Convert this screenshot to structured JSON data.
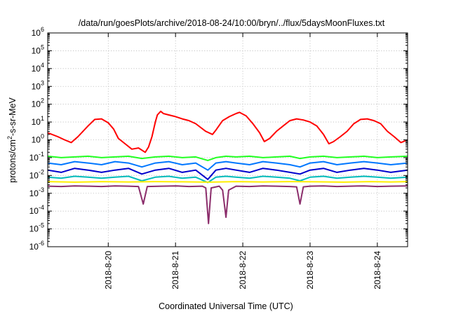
{
  "chart_data": {
    "type": "line",
    "title": "/data/run/goesPlots/archive/2018-08-24/10:00/bryn/../flux/5daysMoonFluxes.txt",
    "xlabel": "Coordinated Universal Time (UTC)",
    "ylabel": {
      "main": "protons/cm",
      "sup": "2",
      "rest": "-s-sr-MeV"
    },
    "y_scale": "log",
    "ylim_exponent": [
      -6,
      6
    ],
    "yticks": [
      {
        "base": "10",
        "exp": "-6"
      },
      {
        "base": "10",
        "exp": "-5"
      },
      {
        "base": "10",
        "exp": "-4"
      },
      {
        "base": "10",
        "exp": "-3"
      },
      {
        "base": "10",
        "exp": "-2"
      },
      {
        "base": "10",
        "exp": "-1"
      },
      {
        "base": "10",
        "exp": "0"
      },
      {
        "base": "10",
        "exp": "1"
      },
      {
        "base": "10",
        "exp": "2"
      },
      {
        "base": "10",
        "exp": "3"
      },
      {
        "base": "10",
        "exp": "4"
      },
      {
        "base": "10",
        "exp": "5"
      },
      {
        "base": "10",
        "exp": "6"
      }
    ],
    "xlim_days": [
      19.1,
      24.45
    ],
    "xticks": [
      {
        "label": "2018-8-20",
        "day": 20
      },
      {
        "label": "2018-8-21",
        "day": 21
      },
      {
        "label": "2018-8-22",
        "day": 22
      },
      {
        "label": "2018-8-23",
        "day": 23
      },
      {
        "label": "2018-8-24",
        "day": 24
      }
    ],
    "grid": true,
    "series": [
      {
        "color": "#ff0000",
        "points": [
          [
            19.1,
            2.5
          ],
          [
            19.25,
            1.5
          ],
          [
            19.35,
            1.0
          ],
          [
            19.45,
            0.7
          ],
          [
            19.55,
            1.5
          ],
          [
            19.7,
            6
          ],
          [
            19.8,
            14
          ],
          [
            19.9,
            15
          ],
          [
            20.0,
            9
          ],
          [
            20.08,
            4
          ],
          [
            20.15,
            1.2
          ],
          [
            20.25,
            0.6
          ],
          [
            20.35,
            0.3
          ],
          [
            20.45,
            0.35
          ],
          [
            20.55,
            0.2
          ],
          [
            20.6,
            0.4
          ],
          [
            20.65,
            1.5
          ],
          [
            20.7,
            10
          ],
          [
            20.73,
            25
          ],
          [
            20.78,
            40
          ],
          [
            20.82,
            30
          ],
          [
            20.9,
            25
          ],
          [
            21.0,
            20
          ],
          [
            21.1,
            15
          ],
          [
            21.2,
            12
          ],
          [
            21.3,
            8
          ],
          [
            21.45,
            3
          ],
          [
            21.55,
            2.0
          ],
          [
            21.6,
            3.5
          ],
          [
            21.7,
            12
          ],
          [
            21.8,
            20
          ],
          [
            21.9,
            30
          ],
          [
            21.95,
            35
          ],
          [
            22.05,
            22
          ],
          [
            22.15,
            8
          ],
          [
            22.25,
            2.5
          ],
          [
            22.32,
            0.8
          ],
          [
            22.4,
            1.2
          ],
          [
            22.5,
            3
          ],
          [
            22.6,
            6
          ],
          [
            22.7,
            12
          ],
          [
            22.8,
            15
          ],
          [
            22.9,
            13
          ],
          [
            23.0,
            10
          ],
          [
            23.1,
            6
          ],
          [
            23.2,
            2
          ],
          [
            23.28,
            0.6
          ],
          [
            23.35,
            0.8
          ],
          [
            23.45,
            1.5
          ],
          [
            23.55,
            3
          ],
          [
            23.65,
            8
          ],
          [
            23.75,
            14
          ],
          [
            23.85,
            15
          ],
          [
            23.95,
            12
          ],
          [
            24.05,
            8
          ],
          [
            24.15,
            3
          ],
          [
            24.25,
            1.5
          ],
          [
            24.35,
            0.7
          ],
          [
            24.45,
            1.0
          ]
        ]
      },
      {
        "color": "#22ff22",
        "points": [
          [
            19.1,
            0.12
          ],
          [
            19.3,
            0.1
          ],
          [
            19.5,
            0.11
          ],
          [
            19.7,
            0.12
          ],
          [
            19.9,
            0.1
          ],
          [
            20.1,
            0.11
          ],
          [
            20.3,
            0.12
          ],
          [
            20.5,
            0.09
          ],
          [
            20.7,
            0.11
          ],
          [
            20.9,
            0.12
          ],
          [
            21.1,
            0.1
          ],
          [
            21.3,
            0.11
          ],
          [
            21.48,
            0.07
          ],
          [
            21.6,
            0.1
          ],
          [
            21.75,
            0.12
          ],
          [
            21.9,
            0.11
          ],
          [
            22.1,
            0.12
          ],
          [
            22.3,
            0.1
          ],
          [
            22.5,
            0.11
          ],
          [
            22.7,
            0.12
          ],
          [
            22.85,
            0.09
          ],
          [
            23.0,
            0.11
          ],
          [
            23.2,
            0.12
          ],
          [
            23.4,
            0.1
          ],
          [
            23.6,
            0.11
          ],
          [
            23.8,
            0.12
          ],
          [
            24.0,
            0.1
          ],
          [
            24.2,
            0.11
          ],
          [
            24.45,
            0.12
          ]
        ]
      },
      {
        "color": "#0077ff",
        "points": [
          [
            19.1,
            0.05
          ],
          [
            19.3,
            0.04
          ],
          [
            19.5,
            0.06
          ],
          [
            19.7,
            0.05
          ],
          [
            19.9,
            0.04
          ],
          [
            20.1,
            0.06
          ],
          [
            20.3,
            0.05
          ],
          [
            20.5,
            0.03
          ],
          [
            20.7,
            0.05
          ],
          [
            20.9,
            0.06
          ],
          [
            21.1,
            0.04
          ],
          [
            21.3,
            0.05
          ],
          [
            21.48,
            0.02
          ],
          [
            21.6,
            0.05
          ],
          [
            21.75,
            0.06
          ],
          [
            21.9,
            0.05
          ],
          [
            22.1,
            0.04
          ],
          [
            22.3,
            0.06
          ],
          [
            22.5,
            0.05
          ],
          [
            22.7,
            0.04
          ],
          [
            22.85,
            0.03
          ],
          [
            23.0,
            0.05
          ],
          [
            23.2,
            0.06
          ],
          [
            23.4,
            0.04
          ],
          [
            23.6,
            0.05
          ],
          [
            23.8,
            0.06
          ],
          [
            24.0,
            0.05
          ],
          [
            24.2,
            0.04
          ],
          [
            24.45,
            0.05
          ]
        ]
      },
      {
        "color": "#0000cc",
        "points": [
          [
            19.1,
            0.02
          ],
          [
            19.3,
            0.015
          ],
          [
            19.5,
            0.025
          ],
          [
            19.7,
            0.02
          ],
          [
            19.9,
            0.015
          ],
          [
            20.1,
            0.02
          ],
          [
            20.3,
            0.025
          ],
          [
            20.5,
            0.012
          ],
          [
            20.7,
            0.02
          ],
          [
            20.9,
            0.025
          ],
          [
            21.1,
            0.015
          ],
          [
            21.3,
            0.02
          ],
          [
            21.48,
            0.006
          ],
          [
            21.6,
            0.02
          ],
          [
            21.75,
            0.025
          ],
          [
            21.9,
            0.02
          ],
          [
            22.1,
            0.015
          ],
          [
            22.3,
            0.025
          ],
          [
            22.5,
            0.02
          ],
          [
            22.7,
            0.015
          ],
          [
            22.85,
            0.012
          ],
          [
            23.0,
            0.02
          ],
          [
            23.2,
            0.025
          ],
          [
            23.4,
            0.015
          ],
          [
            23.6,
            0.02
          ],
          [
            23.8,
            0.025
          ],
          [
            24.0,
            0.02
          ],
          [
            24.2,
            0.015
          ],
          [
            24.45,
            0.02
          ]
        ]
      },
      {
        "color": "#00bcbc",
        "points": [
          [
            19.1,
            0.008
          ],
          [
            19.3,
            0.007
          ],
          [
            19.5,
            0.009
          ],
          [
            19.7,
            0.008
          ],
          [
            19.9,
            0.007
          ],
          [
            20.1,
            0.008
          ],
          [
            20.3,
            0.009
          ],
          [
            20.5,
            0.005
          ],
          [
            20.7,
            0.008
          ],
          [
            20.9,
            0.009
          ],
          [
            21.1,
            0.007
          ],
          [
            21.3,
            0.008
          ],
          [
            21.48,
            0.004
          ],
          [
            21.6,
            0.008
          ],
          [
            21.75,
            0.009
          ],
          [
            21.9,
            0.008
          ],
          [
            22.1,
            0.007
          ],
          [
            22.3,
            0.009
          ],
          [
            22.5,
            0.008
          ],
          [
            22.7,
            0.007
          ],
          [
            22.85,
            0.005
          ],
          [
            23.0,
            0.008
          ],
          [
            23.2,
            0.009
          ],
          [
            23.4,
            0.007
          ],
          [
            23.6,
            0.008
          ],
          [
            23.8,
            0.009
          ],
          [
            24.0,
            0.008
          ],
          [
            24.2,
            0.007
          ],
          [
            24.45,
            0.008
          ]
        ]
      },
      {
        "color": "#ffee00",
        "points": [
          [
            19.1,
            0.0045
          ],
          [
            19.5,
            0.0042
          ],
          [
            19.9,
            0.0045
          ],
          [
            20.3,
            0.0043
          ],
          [
            20.7,
            0.0045
          ],
          [
            21.1,
            0.0044
          ],
          [
            21.5,
            0.0042
          ],
          [
            21.9,
            0.0045
          ],
          [
            22.3,
            0.0043
          ],
          [
            22.7,
            0.0045
          ],
          [
            23.1,
            0.0044
          ],
          [
            23.5,
            0.0042
          ],
          [
            23.9,
            0.0045
          ],
          [
            24.2,
            0.0043
          ],
          [
            24.45,
            0.0045
          ]
        ]
      },
      {
        "color": "#8b2d6b",
        "points": [
          [
            19.1,
            0.0025
          ],
          [
            19.3,
            0.0024
          ],
          [
            19.5,
            0.0026
          ],
          [
            19.7,
            0.0025
          ],
          [
            19.9,
            0.0024
          ],
          [
            20.1,
            0.0026
          ],
          [
            20.3,
            0.0025
          ],
          [
            20.45,
            0.0024
          ],
          [
            20.52,
            0.00025
          ],
          [
            20.58,
            0.0024
          ],
          [
            20.8,
            0.0025
          ],
          [
            21.0,
            0.0026
          ],
          [
            21.2,
            0.0024
          ],
          [
            21.4,
            0.0025
          ],
          [
            21.45,
            0.002
          ],
          [
            21.49,
            2e-05
          ],
          [
            21.53,
            0.002
          ],
          [
            21.65,
            0.0025
          ],
          [
            21.7,
            0.0015
          ],
          [
            21.75,
            4.5e-05
          ],
          [
            21.79,
            0.0015
          ],
          [
            21.9,
            0.0025
          ],
          [
            22.1,
            0.0024
          ],
          [
            22.3,
            0.0026
          ],
          [
            22.5,
            0.0025
          ],
          [
            22.7,
            0.0024
          ],
          [
            22.8,
            0.0023
          ],
          [
            22.85,
            0.00025
          ],
          [
            22.9,
            0.0023
          ],
          [
            23.0,
            0.0025
          ],
          [
            23.2,
            0.0026
          ],
          [
            23.4,
            0.0024
          ],
          [
            23.6,
            0.0025
          ],
          [
            23.8,
            0.0026
          ],
          [
            24.0,
            0.0024
          ],
          [
            24.2,
            0.0025
          ],
          [
            24.45,
            0.0026
          ]
        ]
      }
    ]
  }
}
